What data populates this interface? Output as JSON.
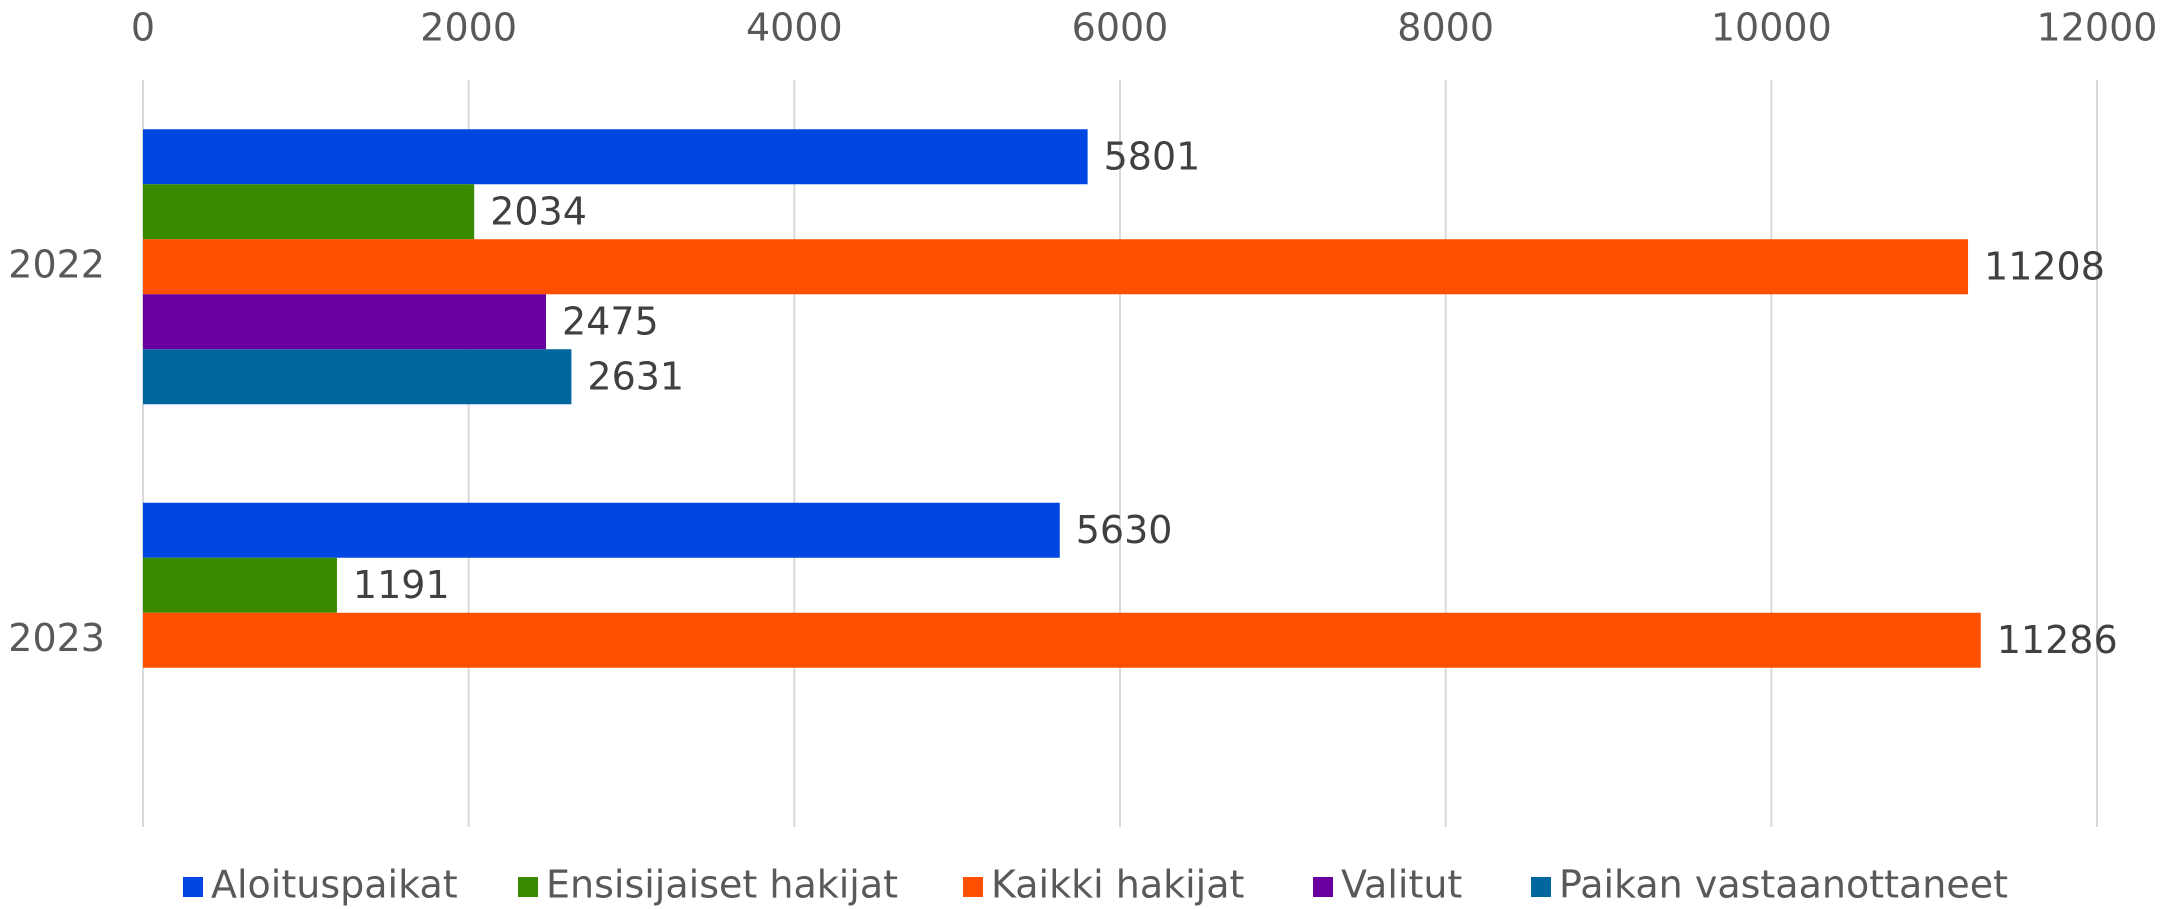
{
  "chart_data": {
    "type": "barh",
    "categories": [
      "2022",
      "2023"
    ],
    "series": [
      {
        "name": "Aloituspaikat",
        "color": "#0046e0",
        "values": [
          5801,
          5630
        ]
      },
      {
        "name": "Ensisijaiset hakijat",
        "color": "#3a8a00",
        "values": [
          2034,
          1191
        ]
      },
      {
        "name": "Kaikki hakijat",
        "color": "#ff5000",
        "values": [
          11208,
          11286
        ]
      },
      {
        "name": "Valitut",
        "color": "#6a00a0",
        "values": [
          2475,
          null
        ]
      },
      {
        "name": "Paikan vastaanottaneet",
        "color": "#00679e",
        "values": [
          2631,
          null
        ]
      }
    ],
    "xlim": [
      0,
      12000
    ],
    "xticks": [
      0,
      2000,
      4000,
      6000,
      8000,
      10000,
      12000
    ],
    "grid": true,
    "legend": "bottom"
  }
}
